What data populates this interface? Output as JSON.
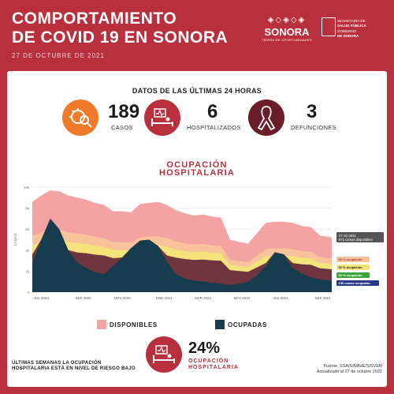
{
  "header": {
    "title_line1": "COMPORTAMIENTO",
    "title_line2": "DE COVID 19 EN SONORA",
    "date": "27 DE OCTUBRE DE 2021",
    "logo_word": "SONORA",
    "logo_sub": "TIERRA DE OPORTUNIDADES",
    "gov_line1": "SECRETARÍA DE",
    "gov_line2": "SALUD PÚBLICA",
    "gov_line3": "GOBIERNO",
    "gov_line4": "DE SONORA"
  },
  "summary": {
    "heading": "DATOS DE LAS ÚLTIMAS 24 HORAS",
    "cases_value": "189",
    "cases_label": "CASOS",
    "hosp_value": "6",
    "hosp_label": "HOSPITALIZADOS",
    "deaths_value": "3",
    "deaths_label": "DEFUNCIONES"
  },
  "chart_title_line1": "OCUPACIÓN",
  "chart_title_line2": "HOSPITALARIA",
  "legend": {
    "available": "DISPONIBLES",
    "occupied": "OCUPADAS"
  },
  "footer": {
    "note": "ÚLTIMAS SEMANAS LA OCUPACIÓN HOSPITALARIA ESTÁ EN NIVEL DE RIESGO BAJO",
    "occupancy_pct": "24%",
    "occupancy_label_1": "OCUPACIÓN",
    "occupancy_label_2": "HOSPITALARIA",
    "source_1": "Fuente: SSA/SINAVE/SISVER",
    "source_2": "Actualizado al 27 de octubre 2021"
  },
  "colors": {
    "brand_red": "#b8303e",
    "available": "#f4a3a3",
    "occupied": "#173c4d",
    "band_green": "#8fcf8f",
    "band_yellow": "#f4e27a",
    "band_orange": "#f8c29a",
    "band_maroon": "#6a1a30"
  },
  "chart_data": {
    "type": "area",
    "title": "OCUPACIÓN HOSPITALARIA",
    "ylabel": "CAMAS",
    "ylim": [
      0,
      10000
    ],
    "y_ticks": [
      "0",
      "2k",
      "4k",
      "6k",
      "8k",
      "10k"
    ],
    "x_ticks": [
      "JUL 2020",
      "SEP 2020",
      "NOV 2020",
      "ENE 2021",
      "MAR 2021",
      "MAY 2021",
      "JUL 2021",
      "SEP 2021"
    ],
    "x_tick_pos": [
      0.03,
      0.17,
      0.3,
      0.44,
      0.57,
      0.7,
      0.83,
      0.97
    ],
    "t": [
      0,
      0.03,
      0.06,
      0.09,
      0.12,
      0.15,
      0.18,
      0.21,
      0.24,
      0.27,
      0.3,
      0.33,
      0.36,
      0.39,
      0.42,
      0.45,
      0.48,
      0.51,
      0.54,
      0.57,
      0.6,
      0.63,
      0.66,
      0.69,
      0.72,
      0.75,
      0.78,
      0.81,
      0.84,
      0.87,
      0.9,
      0.93,
      0.96,
      1.0
    ],
    "capacity": [
      8600,
      9200,
      9700,
      9600,
      9200,
      9000,
      8800,
      8500,
      8300,
      7700,
      7700,
      7600,
      8400,
      8500,
      8600,
      8300,
      7800,
      7500,
      7300,
      7400,
      7200,
      7100,
      5000,
      4800,
      4600,
      5600,
      6600,
      6700,
      6700,
      6600,
      6300,
      6200,
      5400,
      5200
    ],
    "occupied": [
      2800,
      5000,
      7000,
      6000,
      4000,
      2800,
      2300,
      1900,
      1700,
      2500,
      3300,
      4200,
      4900,
      5000,
      4400,
      2900,
      1700,
      1300,
      1100,
      1000,
      900,
      800,
      700,
      800,
      1000,
      1600,
      2500,
      3800,
      3600,
      2300,
      1800,
      1400,
      1200,
      1100
    ],
    "series": [
      {
        "name": "DISPONIBLES"
      },
      {
        "name": "OCUPADAS"
      }
    ],
    "bands": [
      {
        "name": "53 % ocupación",
        "fraction": 0.53,
        "color": "#f8c29a"
      },
      {
        "name": "52 % ocupación",
        "fraction": 0.52,
        "color": "#f4e27a"
      },
      {
        "name": "50 % ocupación",
        "fraction": 0.5,
        "color": "#8fcf8f"
      },
      {
        "name": "150 camas ocupadas",
        "fraction": 0.0,
        "color": "#3a5ca8"
      }
    ],
    "annotation": {
      "date": "27 oct 2021",
      "text": "671 camas disponibles",
      "occupied": "150 camas ocupadas",
      "label_53": "53 % ocupación",
      "label_52": "52 % ocupación",
      "label_50": "50 % ocupación"
    },
    "legend_placement": "bottom"
  }
}
